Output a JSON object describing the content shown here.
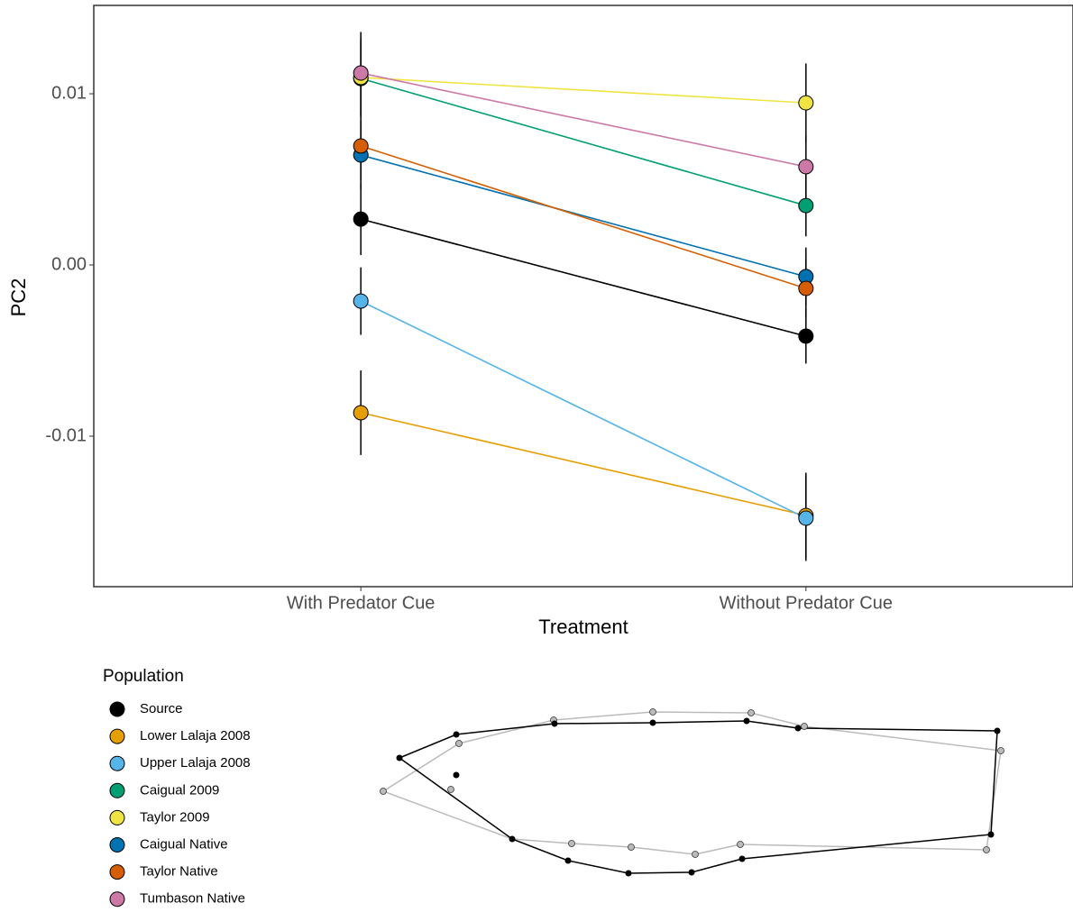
{
  "chart_data": {
    "type": "line",
    "x_label": "Treatment",
    "y_label": "PC2",
    "categories": [
      "With Predator Cue",
      "Without Predator Cue"
    ],
    "ylim": [
      -0.01879,
      0.01516
    ],
    "yticks": [
      0.01,
      {
        "value": 0,
        "label": "0.00"
      },
      -0.01
    ],
    "legend_title": "Population",
    "series": [
      {
        "name": "Source",
        "color": "#000000",
        "values": [
          0.00268,
          -0.00416
        ],
        "errors": [
          0.0021,
          0.0016
        ]
      },
      {
        "name": "Lower Lalaja 2008",
        "color": "#E69F00",
        "values": [
          -0.00863,
          -0.01463
        ],
        "errors": [
          0.00247,
          0.0025
        ]
      },
      {
        "name": "Upper Lalaja 2008",
        "color": "#56B4E9",
        "values": [
          -0.00211,
          -0.01479
        ],
        "errors": [
          0.00197,
          0.0025
        ]
      },
      {
        "name": "Caigual 2009",
        "color": "#009E73",
        "values": [
          0.01089,
          0.00347
        ],
        "errors": [
          0.0022,
          0.0018
        ]
      },
      {
        "name": "Taylor 2009",
        "color": "#F0E442",
        "values": [
          0.01095,
          0.00947
        ],
        "errors": [
          0.0023,
          0.0023
        ]
      },
      {
        "name": "Caigual Native",
        "color": "#0072B2",
        "values": [
          0.00642,
          -0.00068
        ],
        "errors": [
          0.002,
          0.0017
        ]
      },
      {
        "name": "Taylor Native",
        "color": "#D55E00",
        "values": [
          0.00695,
          -0.00137
        ],
        "errors": [
          0.002,
          0.0017
        ]
      },
      {
        "name": "Tumbason Native",
        "color": "#CC79A7",
        "values": [
          0.01121,
          0.00574
        ],
        "errors": [
          0.0024,
          0.0018
        ]
      }
    ]
  }
}
